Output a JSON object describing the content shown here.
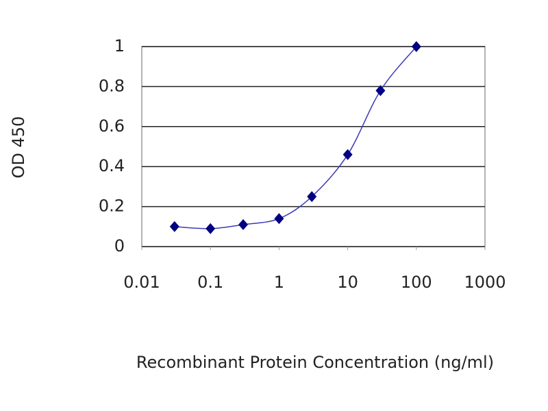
{
  "chart_data": {
    "type": "line",
    "x_label": "Recombinant Protein Concentration (ng/ml)",
    "y_label": "OD 450",
    "x": [
      0.03,
      0.1,
      0.3,
      1,
      3,
      10,
      30,
      100
    ],
    "series": [
      {
        "color": "#000080",
        "values": [
          0.1,
          0.09,
          0.11,
          0.14,
          0.25,
          0.46,
          0.78,
          1.0
        ]
      }
    ],
    "x_log": true,
    "xlim": [
      0.01,
      1000
    ],
    "xticks": [
      0.01,
      0.1,
      1,
      10,
      100,
      1000
    ],
    "ylim": [
      0,
      1
    ],
    "yticks": [
      0,
      0.2,
      0.4,
      0.6,
      0.8,
      1
    ],
    "grid": true
  }
}
